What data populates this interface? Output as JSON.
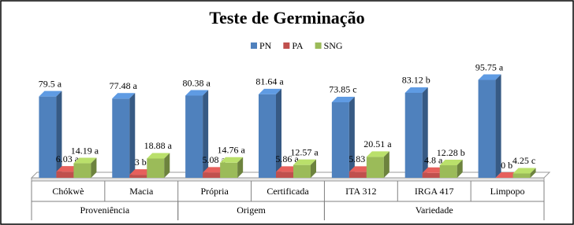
{
  "chart_data": {
    "type": "bar3d",
    "title": "Teste de Germinação",
    "categories": [
      "Chókwè",
      "Macia",
      "Própria",
      "Certificada",
      "ITA 312",
      "IRGA 417",
      "Limpopo"
    ],
    "groups": [
      {
        "name": "Proveniência",
        "count": 2
      },
      {
        "name": "Origem",
        "count": 2
      },
      {
        "name": "Variedade",
        "count": 3
      }
    ],
    "series": [
      {
        "name": "PN",
        "color": "#4f81bd",
        "values": [
          79.5,
          77.48,
          80.38,
          81.64,
          73.85,
          83.12,
          95.75
        ],
        "value_labels": [
          "79.5 a",
          "77.48 a",
          "80.38 a",
          "81.64 a",
          "73.85 c",
          "83.12 b",
          "95.75  a"
        ]
      },
      {
        "name": "PA",
        "color": "#c0504d",
        "values": [
          6.03,
          3,
          5.08,
          5.86,
          5.83,
          4.8,
          0
        ],
        "value_labels": [
          "6.03 a",
          "3 b",
          "5.08 a",
          "5.86 a",
          "5.83 a",
          "4.8 a",
          "0 b"
        ]
      },
      {
        "name": "SNG",
        "color": "#9bbb59",
        "values": [
          14.19,
          18.88,
          14.76,
          12.57,
          20.51,
          12.28,
          4.25
        ],
        "value_labels": [
          "14.19 a",
          "18.88 a",
          "14.76 a",
          "12.57 a",
          "20.51 a",
          "12.28 b",
          "4.25 c"
        ]
      }
    ],
    "legend": "top"
  }
}
